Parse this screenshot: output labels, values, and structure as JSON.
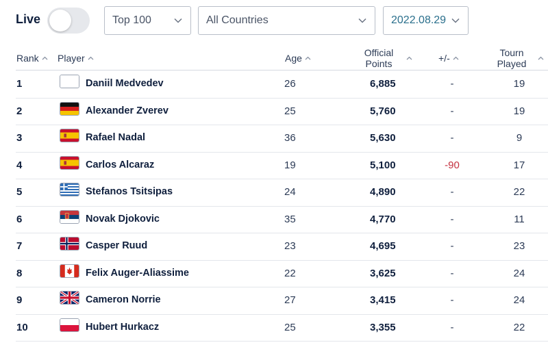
{
  "filters": {
    "live_label": "Live",
    "live_on": false,
    "top_select": "Top 100",
    "country_select": "All Countries",
    "date_select": "2022.08.29"
  },
  "table": {
    "headers": {
      "rank": "Rank",
      "player": "Player",
      "age": "Age",
      "points_line1": "Official",
      "points_line2": "Points",
      "diff": "+/-",
      "tourn_line1": "Tourn",
      "tourn_line2": "Played"
    },
    "rows": [
      {
        "rank": "1",
        "flag": "blank",
        "player": "Daniil Medvedev",
        "age": "26",
        "points": "6,885",
        "diff": "-",
        "tourn": "19"
      },
      {
        "rank": "2",
        "flag": "germany",
        "player": "Alexander Zverev",
        "age": "25",
        "points": "5,760",
        "diff": "-",
        "tourn": "19"
      },
      {
        "rank": "3",
        "flag": "spain",
        "player": "Rafael Nadal",
        "age": "36",
        "points": "5,630",
        "diff": "-",
        "tourn": "9"
      },
      {
        "rank": "4",
        "flag": "spain",
        "player": "Carlos Alcaraz",
        "age": "19",
        "points": "5,100",
        "diff": "-90",
        "tourn": "17"
      },
      {
        "rank": "5",
        "flag": "greece",
        "player": "Stefanos Tsitsipas",
        "age": "24",
        "points": "4,890",
        "diff": "-",
        "tourn": "22"
      },
      {
        "rank": "6",
        "flag": "serbia",
        "player": "Novak Djokovic",
        "age": "35",
        "points": "4,770",
        "diff": "-",
        "tourn": "11"
      },
      {
        "rank": "7",
        "flag": "norway",
        "player": "Casper Ruud",
        "age": "23",
        "points": "4,695",
        "diff": "-",
        "tourn": "23"
      },
      {
        "rank": "8",
        "flag": "canada",
        "player": "Felix Auger-Aliassime",
        "age": "22",
        "points": "3,625",
        "diff": "-",
        "tourn": "24"
      },
      {
        "rank": "9",
        "flag": "great-britain",
        "player": "Cameron Norrie",
        "age": "27",
        "points": "3,415",
        "diff": "-",
        "tourn": "24"
      },
      {
        "rank": "10",
        "flag": "poland",
        "player": "Hubert Hurkacz",
        "age": "25",
        "points": "3,355",
        "diff": "-",
        "tourn": "22"
      }
    ]
  },
  "colors": {
    "text": "#0f1f3d",
    "negative": "#c4303f",
    "date_text": "#2a6f8c",
    "divider": "#e3e6eb"
  }
}
